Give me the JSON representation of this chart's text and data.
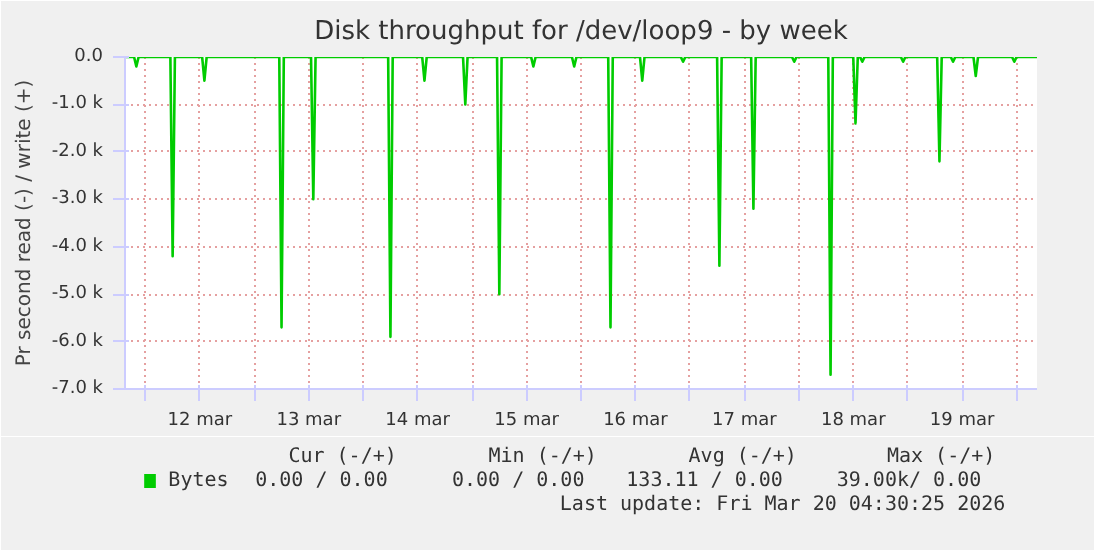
{
  "chart_data": {
    "type": "line",
    "title": "Disk throughput for /dev/loop9 - by week",
    "ylabel": "Pr second read (-) / write (+)",
    "x": [
      "2026-03-11T19:30",
      "2026-03-11T21:30",
      "2026-03-11T22:00",
      "2026-03-11T22:30",
      "2026-03-12T05:30",
      "2026-03-12T06:00",
      "2026-03-12T06:30",
      "2026-03-12T12:30",
      "2026-03-12T13:00",
      "2026-03-12T13:30",
      "2026-03-13T05:30",
      "2026-03-13T06:00",
      "2026-03-13T06:30",
      "2026-03-13T12:30",
      "2026-03-13T13:00",
      "2026-03-13T13:30",
      "2026-03-14T05:30",
      "2026-03-14T06:00",
      "2026-03-14T06:30",
      "2026-03-14T13:00",
      "2026-03-14T13:30",
      "2026-03-14T14:00",
      "2026-03-14T22:00",
      "2026-03-14T22:30",
      "2026-03-14T23:00",
      "2026-03-15T05:30",
      "2026-03-15T06:00",
      "2026-03-15T06:30",
      "2026-03-15T13:00",
      "2026-03-15T13:30",
      "2026-03-15T14:00",
      "2026-03-15T22:00",
      "2026-03-15T22:30",
      "2026-03-15T23:00",
      "2026-03-16T06:00",
      "2026-03-16T06:30",
      "2026-03-16T07:00",
      "2026-03-16T13:00",
      "2026-03-16T13:30",
      "2026-03-16T14:00",
      "2026-03-16T22:00",
      "2026-03-16T22:30",
      "2026-03-16T23:00",
      "2026-03-17T06:00",
      "2026-03-17T06:30",
      "2026-03-17T07:00",
      "2026-03-17T13:30",
      "2026-03-17T14:00",
      "2026-03-17T14:30",
      "2026-03-17T22:30",
      "2026-03-17T23:00",
      "2026-03-17T23:30",
      "2026-03-18T06:30",
      "2026-03-18T07:00",
      "2026-03-18T07:30",
      "2026-03-18T12:00",
      "2026-03-18T12:30",
      "2026-03-18T13:00",
      "2026-03-18T13:30",
      "2026-03-18T14:00",
      "2026-03-18T14:30",
      "2026-03-18T22:30",
      "2026-03-18T23:00",
      "2026-03-18T23:30",
      "2026-03-19T06:30",
      "2026-03-19T07:00",
      "2026-03-19T07:30",
      "2026-03-19T09:30",
      "2026-03-19T10:00",
      "2026-03-19T10:30",
      "2026-03-19T14:30",
      "2026-03-19T15:00",
      "2026-03-19T15:30",
      "2026-03-19T23:00",
      "2026-03-19T23:30",
      "2026-03-20T00:00",
      "2026-03-20T04:30"
    ],
    "series": [
      {
        "name": "Bytes",
        "color": "#00cc00",
        "values": [
          0,
          0,
          -200,
          0,
          0,
          -4200,
          0,
          0,
          -500,
          0,
          0,
          -5700,
          0,
          0,
          -3000,
          0,
          0,
          -5900,
          0,
          0,
          -500,
          0,
          0,
          -1000,
          0,
          0,
          -5000,
          0,
          0,
          -200,
          0,
          0,
          -200,
          0,
          0,
          -5700,
          0,
          0,
          -500,
          0,
          0,
          -100,
          0,
          0,
          -4400,
          0,
          0,
          -3200,
          0,
          0,
          -100,
          0,
          0,
          -6700,
          0,
          0,
          -1400,
          0,
          0,
          -100,
          0,
          0,
          -100,
          0,
          0,
          -2200,
          0,
          0,
          -100,
          0,
          0,
          -400,
          0,
          0,
          -100,
          0,
          0
        ]
      }
    ],
    "xlim": [
      "2026-03-11T19:30",
      "2026-03-20T04:30"
    ],
    "xticks": [
      {
        "value": "2026-03-12T00:00",
        "label": null
      },
      {
        "value": "2026-03-12T12:00",
        "label": "12 mar"
      },
      {
        "value": "2026-03-13T00:00",
        "label": null
      },
      {
        "value": "2026-03-13T12:00",
        "label": "13 mar"
      },
      {
        "value": "2026-03-14T00:00",
        "label": null
      },
      {
        "value": "2026-03-14T12:00",
        "label": "14 mar"
      },
      {
        "value": "2026-03-15T00:00",
        "label": null
      },
      {
        "value": "2026-03-15T12:00",
        "label": "15 mar"
      },
      {
        "value": "2026-03-16T00:00",
        "label": null
      },
      {
        "value": "2026-03-16T12:00",
        "label": "16 mar"
      },
      {
        "value": "2026-03-17T00:00",
        "label": null
      },
      {
        "value": "2026-03-17T12:00",
        "label": "17 mar"
      },
      {
        "value": "2026-03-18T00:00",
        "label": null
      },
      {
        "value": "2026-03-18T12:00",
        "label": "18 mar"
      },
      {
        "value": "2026-03-19T00:00",
        "label": null
      },
      {
        "value": "2026-03-19T12:00",
        "label": "19 mar"
      },
      {
        "value": "2026-03-20T00:00",
        "label": null
      }
    ],
    "ylim": [
      -7000,
      0
    ],
    "yticks": [
      {
        "value": 0,
        "label": "0.0"
      },
      {
        "value": -1000,
        "label": "-1.0 k"
      },
      {
        "value": -2000,
        "label": "-2.0 k"
      },
      {
        "value": -3000,
        "label": "-3.0 k"
      },
      {
        "value": -4000,
        "label": "-4.0 k"
      },
      {
        "value": -5000,
        "label": "-5.0 k"
      },
      {
        "value": -6000,
        "label": "-6.0 k"
      },
      {
        "value": -7000,
        "label": "-7.0 k"
      }
    ],
    "grid": true,
    "legend": "bottom left",
    "marker": "none",
    "line_style": "solid",
    "annotations": [
      "Cur (-/+)",
      "Min (-/+)",
      "Avg (-/+)",
      "Max (-/+)",
      "0.00 /   0.00",
      "0.00 /   0.00",
      "133.11 /   0.00",
      "39.00k/   0.00",
      "Last update: Fri Mar 20 04:30:25 2026"
    ]
  }
}
